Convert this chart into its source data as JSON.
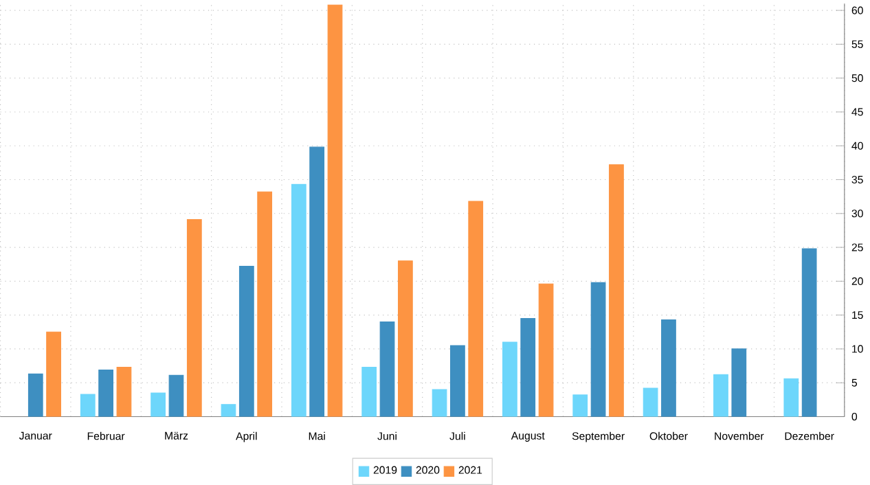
{
  "chart_data": {
    "type": "bar",
    "categories": [
      "Januar",
      "Februar",
      "März",
      "April",
      "Mai",
      "Juni",
      "Juli",
      "August",
      "September",
      "Oktober",
      "November",
      "Dezember"
    ],
    "series": [
      {
        "name": "2019",
        "color": "#6dd6fb",
        "values": [
          null,
          3.3,
          3.5,
          1.8,
          34.3,
          7.3,
          4.0,
          11.0,
          3.2,
          4.2,
          6.2,
          5.6
        ]
      },
      {
        "name": "2020",
        "color": "#3e8fc1",
        "values": [
          6.3,
          6.9,
          6.1,
          22.2,
          39.8,
          14.0,
          10.5,
          14.5,
          19.8,
          14.3,
          10.0,
          24.8
        ]
      },
      {
        "name": "2021",
        "color": "#fd9442",
        "values": [
          12.5,
          7.3,
          29.1,
          33.2,
          60.8,
          23.0,
          31.8,
          19.6,
          37.2,
          null,
          null,
          null
        ]
      }
    ],
    "ylim": [
      0,
      61
    ],
    "yticks": [
      0,
      5,
      10,
      15,
      20,
      25,
      30,
      35,
      40,
      45,
      50,
      55,
      60
    ],
    "grid": true,
    "legend": "bottom"
  }
}
